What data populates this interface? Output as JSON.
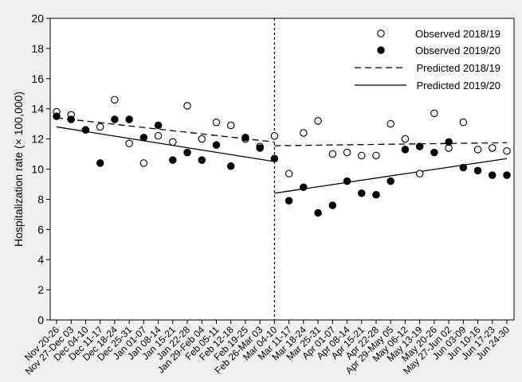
{
  "chart_data": {
    "type": "scatter",
    "ylabel": "Hospitalization rate (× 100,000)",
    "xlabel": "",
    "ylim": [
      0,
      20
    ],
    "yticks": [
      0,
      2,
      4,
      6,
      8,
      10,
      12,
      14,
      16,
      18,
      20
    ],
    "grid": false,
    "legend_position": "top-right",
    "categories": [
      "Nov 20-26",
      "Nov 27-Dec 03",
      "Dec 04-10",
      "Dec 11-17",
      "Dec 18-24",
      "Dec 25-31",
      "Jan 01-07",
      "Jan 08-14",
      "Jan 15-21",
      "Jan 22-28",
      "Jan 29-Feb 04",
      "Feb 05-11",
      "Feb 12-18",
      "Feb 19-25",
      "Feb 26-Mar 03",
      "Mar 04-10",
      "Mar 11-17",
      "Mar 18-24",
      "Mar 25-31",
      "Apr 01-07",
      "Apr 08-14",
      "Apr 15-21",
      "Apr 22-28",
      "Apr 29-May 05",
      "May 06-12",
      "May 13-19",
      "May 20-26",
      "May 27-Jun 02",
      "Jun 03-09",
      "Jun 10-16",
      "Jun 17-23",
      "Jun 24-30"
    ],
    "divider_after": "Mar 04-10",
    "series": [
      {
        "name": "Observed 2018/19",
        "kind": "open-marker",
        "values": [
          13.8,
          13.6,
          12.6,
          12.8,
          14.6,
          11.7,
          10.4,
          12.2,
          11.8,
          14.2,
          12.0,
          13.1,
          12.9,
          12.0,
          11.5,
          12.2,
          9.7,
          12.4,
          13.2,
          11.0,
          11.1,
          10.9,
          10.9,
          13.0,
          12.0,
          9.7,
          13.7,
          11.4,
          13.1,
          11.3,
          11.4,
          11.2
        ]
      },
      {
        "name": "Observed 2019/20",
        "kind": "filled-marker",
        "values": [
          13.5,
          13.3,
          12.6,
          10.4,
          13.3,
          13.3,
          12.1,
          12.9,
          10.6,
          11.1,
          10.6,
          11.6,
          10.2,
          12.1,
          11.4,
          10.7,
          7.9,
          8.8,
          7.1,
          7.6,
          9.2,
          8.4,
          8.3,
          9.2,
          11.3,
          11.5,
          11.1,
          11.8,
          10.1,
          9.9,
          9.6,
          9.6
        ]
      },
      {
        "name": "Predicted 2018/19",
        "kind": "dashed-line",
        "segments": [
          {
            "from": "Nov 20-26",
            "to": "Mar 04-10",
            "y": [
              13.4,
              11.8
            ]
          },
          {
            "from": "Mar 04-10",
            "to": "Jun 24-30",
            "y": [
              11.55,
              11.75
            ]
          }
        ]
      },
      {
        "name": "Predicted 2019/20",
        "kind": "solid-line",
        "segments": [
          {
            "from": "Nov 20-26",
            "to": "Mar 04-10",
            "y": [
              12.8,
              10.5
            ]
          },
          {
            "from": "Mar 04-10",
            "to": "Jun 24-30",
            "y": [
              8.4,
              10.7
            ]
          }
        ]
      }
    ]
  }
}
